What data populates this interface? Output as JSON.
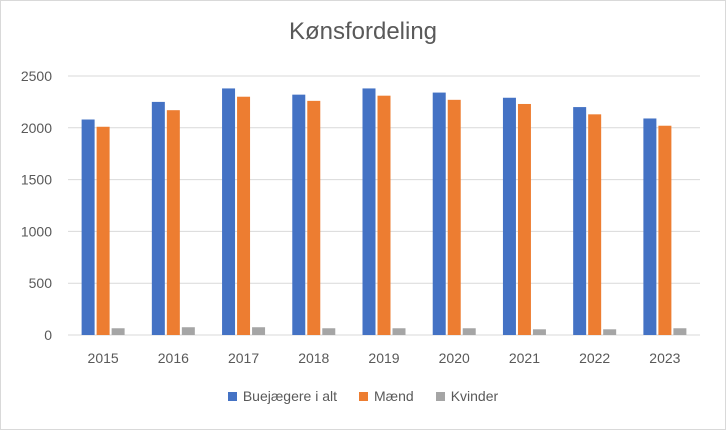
{
  "chart_data": {
    "type": "bar",
    "title": "Kønsfordeling",
    "xlabel": "",
    "ylabel": "",
    "categories": [
      "2015",
      "2016",
      "2017",
      "2018",
      "2019",
      "2020",
      "2021",
      "2022",
      "2023"
    ],
    "ylim": [
      0,
      2500
    ],
    "yticks": [
      0,
      500,
      1000,
      1500,
      2000,
      2500
    ],
    "grid": true,
    "legend_position": "bottom",
    "series": [
      {
        "name": "Buejægere i alt",
        "color": "#4472c4",
        "values": [
          2080,
          2250,
          2380,
          2320,
          2380,
          2340,
          2290,
          2200,
          2090
        ]
      },
      {
        "name": "Mænd",
        "color": "#ed7d31",
        "values": [
          2010,
          2170,
          2300,
          2260,
          2310,
          2270,
          2230,
          2130,
          2020
        ]
      },
      {
        "name": "Kvinder",
        "color": "#a5a5a5",
        "values": [
          65,
          75,
          75,
          65,
          65,
          65,
          55,
          55,
          65
        ]
      }
    ]
  }
}
